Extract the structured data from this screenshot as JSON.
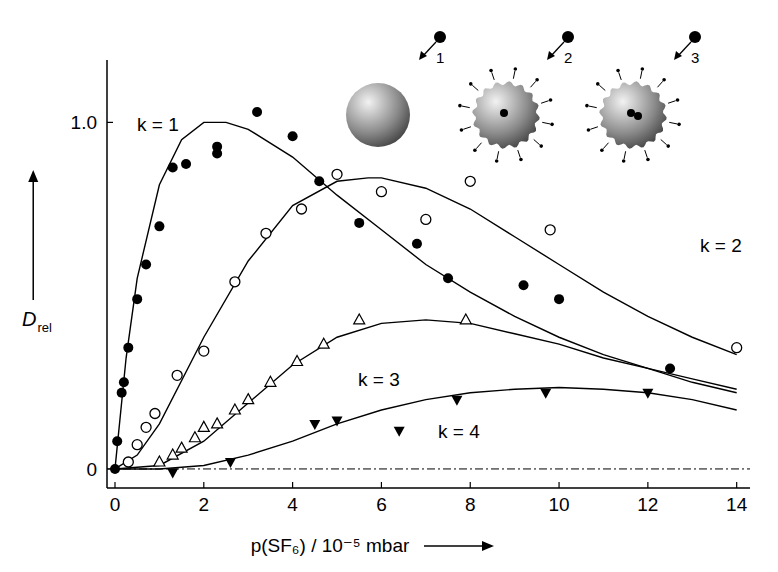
{
  "chart_data": {
    "type": "scatter",
    "x_label": "p(SF₆) / 10⁻⁵ mbar",
    "y_label": {
      "text": "D",
      "subscript": "rel"
    },
    "xlim": [
      -0.18,
      14.3
    ],
    "ylim": [
      -0.055,
      1.18
    ],
    "xticks": [
      0,
      2,
      4,
      6,
      8,
      10,
      12,
      14
    ],
    "yticks": [
      0,
      {
        "value": 1,
        "label": "1.0"
      }
    ],
    "grid": false,
    "reference_lines": [
      {
        "y": 0,
        "line_style": "dashdot"
      }
    ],
    "inset_labels": [
      "1",
      "2",
      "3"
    ],
    "series": [
      {
        "name": "k = 1",
        "color": "#000000",
        "marker": "circle",
        "x": [
          0,
          0.05,
          0.15,
          0.2,
          0.3,
          0.5,
          0.7,
          1.0,
          1.3,
          1.6,
          2.3,
          2.3,
          3.2,
          4.0,
          4.6,
          5.5,
          6.8,
          7.5,
          9.2,
          10.0,
          12.5
        ],
        "values": [
          0.0,
          0.08,
          0.22,
          0.25,
          0.35,
          0.49,
          0.59,
          0.7,
          0.87,
          0.88,
          0.91,
          0.93,
          1.03,
          0.96,
          0.83,
          0.71,
          0.65,
          0.55,
          0.53,
          0.49,
          0.29
        ],
        "fit": {
          "line_style": "solid",
          "x": [
            0,
            0.25,
            0.5,
            1,
            1.5,
            2,
            2.5,
            3,
            4,
            5,
            6,
            7,
            8,
            9,
            10,
            11,
            12,
            13,
            14
          ],
          "values": [
            0,
            0.32,
            0.55,
            0.82,
            0.95,
            1.0,
            1.0,
            0.98,
            0.9,
            0.79,
            0.69,
            0.59,
            0.51,
            0.44,
            0.38,
            0.33,
            0.29,
            0.25,
            0.22
          ]
        }
      },
      {
        "name": "k = 2",
        "color": "#000000",
        "marker": "open-circle",
        "x": [
          0.3,
          0.5,
          0.7,
          0.9,
          1.4,
          2.0,
          2.7,
          3.4,
          4.2,
          5.0,
          6.0,
          7.0,
          8.0,
          9.8,
          14.0
        ],
        "values": [
          0.02,
          0.07,
          0.12,
          0.16,
          0.27,
          0.34,
          0.54,
          0.68,
          0.75,
          0.85,
          0.8,
          0.72,
          0.83,
          0.69,
          0.35
        ],
        "fit": {
          "line_style": "solid",
          "x": [
            0,
            0.5,
            1,
            2,
            3,
            4,
            5,
            5.7,
            6,
            7,
            8,
            9,
            10,
            11,
            12,
            13,
            14
          ],
          "values": [
            0,
            0.04,
            0.13,
            0.38,
            0.6,
            0.76,
            0.83,
            0.84,
            0.84,
            0.81,
            0.75,
            0.67,
            0.59,
            0.51,
            0.44,
            0.38,
            0.33
          ]
        }
      },
      {
        "name": "k = 3",
        "color": "#000000",
        "marker": "open-triangle",
        "x": [
          1.0,
          1.3,
          1.5,
          1.8,
          2.0,
          2.3,
          2.7,
          3.0,
          3.5,
          4.1,
          4.7,
          5.5,
          7.9
        ],
        "values": [
          0.02,
          0.04,
          0.06,
          0.09,
          0.12,
          0.13,
          0.17,
          0.2,
          0.25,
          0.31,
          0.36,
          0.43,
          0.43
        ],
        "fit": {
          "line_style": "solid",
          "x": [
            0,
            1,
            2,
            3,
            4,
            5,
            6,
            7,
            8,
            9,
            10,
            11,
            12,
            13,
            14
          ],
          "values": [
            0,
            0.01,
            0.08,
            0.19,
            0.3,
            0.38,
            0.42,
            0.43,
            0.42,
            0.39,
            0.36,
            0.32,
            0.29,
            0.26,
            0.23
          ]
        }
      },
      {
        "name": "k = 4",
        "color": "#000000",
        "marker": "triangle-down",
        "x": [
          1.3,
          2.6,
          4.5,
          5.0,
          6.4,
          7.7,
          9.7,
          12.0
        ],
        "values": [
          -0.01,
          0.02,
          0.13,
          0.14,
          0.11,
          0.2,
          0.22,
          0.22
        ],
        "fit": {
          "line_style": "solid",
          "x": [
            0,
            1,
            2,
            3,
            4,
            5,
            6,
            7,
            8,
            9,
            10,
            11,
            12,
            13,
            14
          ],
          "values": [
            0,
            0,
            0.01,
            0.04,
            0.08,
            0.13,
            0.17,
            0.2,
            0.22,
            0.23,
            0.235,
            0.23,
            0.22,
            0.2,
            0.17
          ]
        }
      }
    ]
  }
}
